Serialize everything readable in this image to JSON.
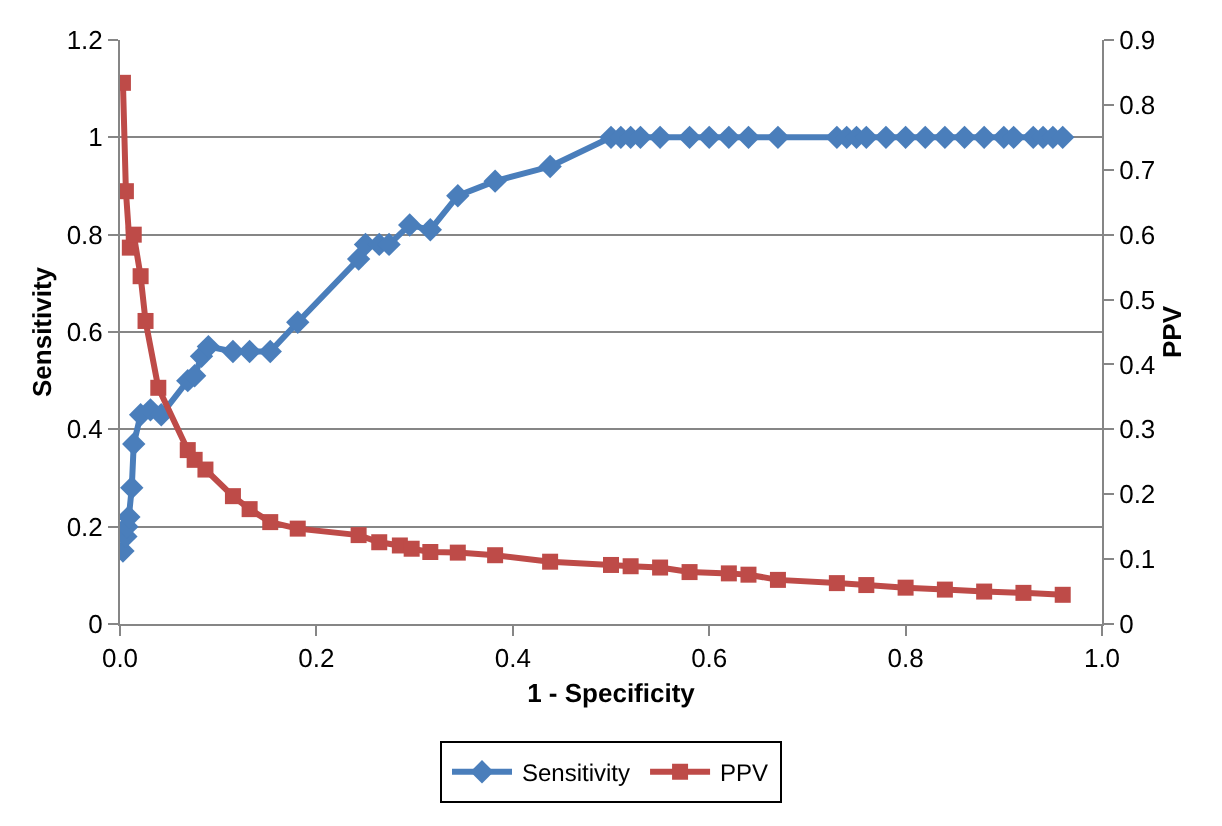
{
  "chart_data": {
    "type": "line",
    "xlabel": "1 - Specificity",
    "ylabel": "Sensitivity",
    "y2label": "PPV",
    "xlim": [
      0,
      1
    ],
    "xticks": [
      {
        "value": 0,
        "label": "0.0"
      },
      0.2,
      0.4,
      0.6,
      0.8,
      {
        "value": 1,
        "label": "1.0"
      }
    ],
    "ylim": [
      0,
      1.2
    ],
    "yticks": [
      0,
      0.2,
      0.4,
      0.6,
      0.8,
      1,
      1.2
    ],
    "y2lim": [
      0,
      0.9
    ],
    "y2ticks": [
      0,
      0.1,
      0.2,
      0.3,
      0.4,
      0.5,
      0.6,
      0.7,
      0.8,
      0.9
    ],
    "grid": "y",
    "legend": "bottom",
    "line_style": "solid",
    "series": [
      {
        "name": "Sensitivity",
        "color": "#4a7ebb",
        "marker": "diamond",
        "x": [
          0.003,
          0.006,
          0.007,
          0.009,
          0.012,
          0.014,
          0.021,
          0.031,
          0.042,
          0.069,
          0.076,
          0.083,
          0.09,
          0.115,
          0.132,
          0.153,
          0.181,
          0.243,
          0.25,
          0.264,
          0.274,
          0.295,
          0.316,
          0.344,
          0.382,
          0.438,
          0.5,
          0.51,
          0.52,
          0.53,
          0.55,
          0.58,
          0.6,
          0.62,
          0.64,
          0.67,
          0.73,
          0.74,
          0.75,
          0.76,
          0.78,
          0.8,
          0.82,
          0.84,
          0.86,
          0.88,
          0.9,
          0.91,
          0.93,
          0.94,
          0.95,
          0.96
        ],
        "values": [
          0.15,
          0.18,
          0.2,
          0.22,
          0.28,
          0.37,
          0.43,
          0.44,
          0.43,
          0.5,
          0.51,
          0.55,
          0.57,
          0.56,
          0.56,
          0.56,
          0.62,
          0.75,
          0.78,
          0.78,
          0.78,
          0.82,
          0.81,
          0.88,
          0.91,
          0.94,
          1,
          1,
          1,
          1,
          1,
          1,
          1,
          1,
          1,
          1,
          1,
          1,
          1,
          1,
          1,
          1,
          1,
          1,
          1,
          1,
          1,
          1,
          1,
          1,
          1,
          1
        ]
      },
      {
        "name": "PPV",
        "color": "#be4b48",
        "marker": "square",
        "axis": "y2",
        "x": [
          0.003,
          0.006,
          0.01,
          0.014,
          0.021,
          0.026,
          0.039,
          0.069,
          0.076,
          0.087,
          0.115,
          0.132,
          0.153,
          0.181,
          0.243,
          0.264,
          0.285,
          0.297,
          0.316,
          0.344,
          0.382,
          0.438,
          0.5,
          0.52,
          0.55,
          0.58,
          0.62,
          0.64,
          0.67,
          0.73,
          0.76,
          0.8,
          0.84,
          0.88,
          0.92,
          0.96
        ],
        "values": [
          0.834,
          0.667,
          0.58,
          0.6,
          0.536,
          0.467,
          0.364,
          0.268,
          0.253,
          0.238,
          0.197,
          0.177,
          0.157,
          0.147,
          0.137,
          0.126,
          0.121,
          0.116,
          0.111,
          0.11,
          0.106,
          0.096,
          0.091,
          0.089,
          0.087,
          0.08,
          0.078,
          0.076,
          0.068,
          0.063,
          0.06,
          0.056,
          0.053,
          0.05,
          0.048,
          0.045
        ]
      }
    ]
  }
}
